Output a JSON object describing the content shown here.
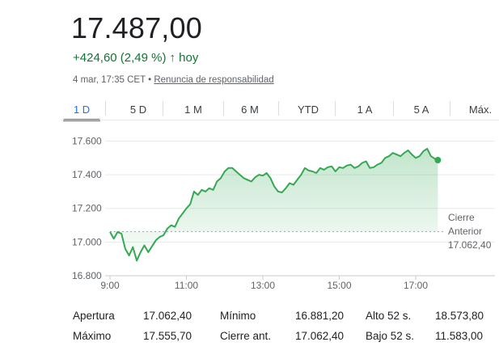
{
  "quote": {
    "price": "17.487,00",
    "change": "+424,60 (2,49 %)",
    "change_arrow": "↑",
    "period": "hoy",
    "timestamp": "4 mar, 17:35 CET",
    "separator": "•",
    "disclaimer": "Renuncia de responsabilidad"
  },
  "tabs": [
    {
      "label": "1 D",
      "active": true
    },
    {
      "label": "5 D",
      "active": false
    },
    {
      "label": "1 M",
      "active": false
    },
    {
      "label": "6 M",
      "active": false
    },
    {
      "label": "YTD",
      "active": false
    },
    {
      "label": "1 A",
      "active": false
    },
    {
      "label": "5 A",
      "active": false
    },
    {
      "label": "Máx.",
      "active": false
    }
  ],
  "colors": {
    "positive": "#137333",
    "line": "#34a853",
    "accent": "#1a73e8",
    "grid": "#e8eaed",
    "text": "#202124",
    "muted": "#5f6368"
  },
  "chart_data": {
    "type": "line",
    "x_ticks": [
      "9:00",
      "11:00",
      "13:00",
      "15:00",
      "17:00"
    ],
    "y_ticks": [
      "16.800",
      "17.000",
      "17.200",
      "17.400",
      "17.600"
    ],
    "ylim": [
      16800,
      17660
    ],
    "xlim_hours": [
      9.0,
      19.3
    ],
    "grid": true,
    "previous_close": {
      "value": 17062.4,
      "label_line1": "Cierre",
      "label_line2": "Anterior",
      "label_value": "17.062,40"
    },
    "series": [
      {
        "x": [
          9.0,
          9.1,
          9.2,
          9.3,
          9.4,
          9.5,
          9.6,
          9.7,
          9.8,
          9.9,
          10.0,
          10.1,
          10.2,
          10.3,
          10.4,
          10.5,
          10.6,
          10.7,
          10.8,
          10.9,
          11.0,
          11.1,
          11.2,
          11.3,
          11.4,
          11.5,
          11.6,
          11.7,
          11.8,
          11.9,
          12.0,
          12.1,
          12.2,
          12.3,
          12.4,
          12.5,
          12.6,
          12.7,
          12.8,
          12.9,
          13.0,
          13.1,
          13.2,
          13.3,
          13.4,
          13.5,
          13.6,
          13.7,
          13.8,
          13.9,
          14.0,
          14.1,
          14.2,
          14.3,
          14.4,
          14.5,
          14.6,
          14.7,
          14.8,
          14.9,
          15.0,
          15.1,
          15.2,
          15.3,
          15.4,
          15.5,
          15.6,
          15.7,
          15.8,
          15.9,
          16.0,
          16.1,
          16.2,
          16.3,
          16.4,
          16.5,
          16.6,
          16.7,
          16.8,
          16.9,
          17.0,
          17.1,
          17.2,
          17.3,
          17.4,
          17.5,
          17.58
        ],
        "values": [
          17060,
          17020,
          17060,
          17050,
          16960,
          16920,
          16970,
          16890,
          16940,
          16980,
          16940,
          16975,
          17010,
          17030,
          17040,
          17080,
          17100,
          17090,
          17140,
          17170,
          17200,
          17225,
          17300,
          17280,
          17310,
          17300,
          17320,
          17310,
          17360,
          17380,
          17420,
          17440,
          17440,
          17420,
          17400,
          17380,
          17370,
          17360,
          17385,
          17400,
          17395,
          17410,
          17380,
          17330,
          17300,
          17295,
          17320,
          17350,
          17340,
          17370,
          17400,
          17440,
          17425,
          17420,
          17410,
          17440,
          17430,
          17445,
          17450,
          17420,
          17445,
          17440,
          17455,
          17460,
          17440,
          17450,
          17470,
          17480,
          17440,
          17445,
          17460,
          17470,
          17500,
          17510,
          17530,
          17520,
          17510,
          17530,
          17545,
          17520,
          17500,
          17510,
          17540,
          17555,
          17510,
          17495,
          17487
        ]
      }
    ]
  },
  "stats": {
    "open_label": "Apertura",
    "open_value": "17.062,40",
    "low_label": "Mínimo",
    "low_value": "16.881,20",
    "high52_label": "Alto 52 s.",
    "high52_value": "18.573,80",
    "high_label": "Máximo",
    "high_value": "17.555,70",
    "prevclose_label": "Cierre ant.",
    "prevclose_value": "17.062,40",
    "low52_label": "Bajo 52 s.",
    "low52_value": "11.583,00"
  }
}
